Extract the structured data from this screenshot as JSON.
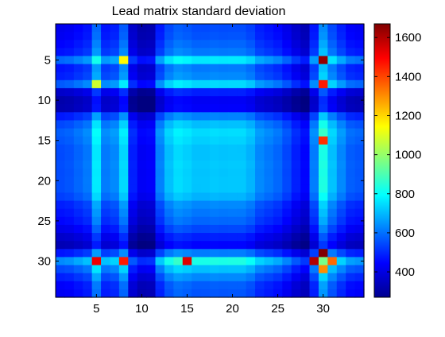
{
  "chart_data": {
    "type": "heatmap",
    "title": "Lead matrix standard deviation",
    "xlabel": "",
    "ylabel": "",
    "rows": 34,
    "cols": 34,
    "x_ticks": [
      5,
      10,
      15,
      20,
      25,
      30
    ],
    "y_ticks": [
      5,
      10,
      15,
      20,
      25,
      30
    ],
    "xlim": [
      0.5,
      34.5
    ],
    "ylim": [
      0.5,
      34.5
    ],
    "y_direction": "top-down",
    "colormap": "jet",
    "colorbar": {
      "range": [
        270,
        1670
      ],
      "ticks": [
        400,
        600,
        800,
        1000,
        1200,
        1400,
        1600
      ],
      "placement": "right"
    },
    "row_levels": [
      400,
      420,
      480,
      520,
      820,
      510,
      560,
      720,
      330,
      260,
      270,
      540,
      700,
      780,
      740,
      720,
      700,
      690,
      690,
      740,
      760,
      700,
      560,
      520,
      480,
      400,
      330,
      280,
      520,
      820,
      710,
      560,
      460,
      440
    ],
    "col_levels": [
      440,
      450,
      470,
      520,
      820,
      540,
      560,
      820,
      330,
      260,
      270,
      540,
      700,
      780,
      760,
      700,
      720,
      760,
      740,
      700,
      680,
      640,
      560,
      520,
      480,
      420,
      330,
      280,
      540,
      1120,
      700,
      560,
      460,
      440
    ],
    "hotspots": [
      {
        "row": 5,
        "col": 30,
        "value": 1640
      },
      {
        "row": 8,
        "col": 30,
        "value": 1460
      },
      {
        "row": 15,
        "col": 30,
        "value": 1430
      },
      {
        "row": 29,
        "col": 30,
        "value": 1670
      },
      {
        "row": 30,
        "col": 29,
        "value": 1600
      },
      {
        "row": 30,
        "col": 5,
        "value": 1520
      },
      {
        "row": 30,
        "col": 15,
        "value": 1540
      },
      {
        "row": 30,
        "col": 8,
        "value": 1460
      },
      {
        "row": 5,
        "col": 8,
        "value": 1150
      },
      {
        "row": 8,
        "col": 5,
        "value": 1080
      },
      {
        "row": 30,
        "col": 31,
        "value": 1350
      },
      {
        "row": 31,
        "col": 30,
        "value": 1300
      }
    ]
  }
}
